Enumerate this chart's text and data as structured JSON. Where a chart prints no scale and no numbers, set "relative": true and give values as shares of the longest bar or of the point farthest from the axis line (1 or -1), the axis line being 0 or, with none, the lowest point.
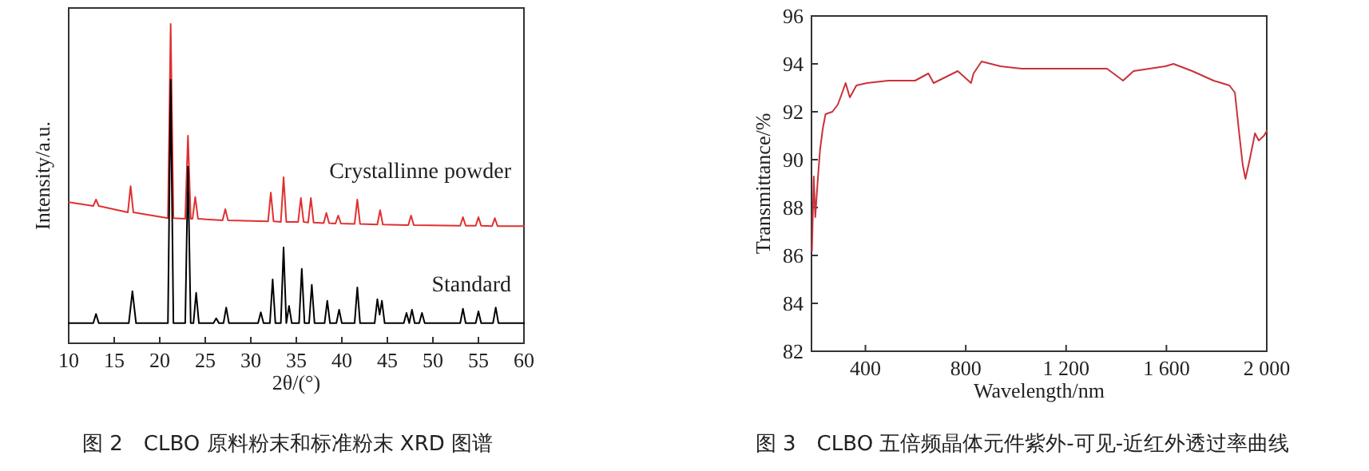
{
  "chart_data": [
    {
      "type": "line",
      "title": "图 2　CLBO 原料粉末和标准粉末 XRD 图谱",
      "xlabel": "2θ/(°)",
      "ylabel": "Intensity/a.u.",
      "relative": true,
      "xlim": [
        10,
        60
      ],
      "xticks": [
        10,
        15,
        20,
        25,
        30,
        35,
        40,
        45,
        50,
        55,
        60
      ],
      "series": [
        {
          "name": "Crystallinne powder",
          "color": "#e03030",
          "x": [
            10,
            12.7,
            13,
            13.3,
            16.5,
            16.8,
            17.1,
            20.9,
            21.2,
            21.5,
            22.8,
            23.1,
            23.4,
            23.6,
            23.9,
            24.2,
            26.9,
            27.2,
            27.5,
            31.9,
            32.2,
            32.5,
            33.3,
            33.6,
            33.9,
            35.2,
            35.5,
            35.8,
            36.3,
            36.6,
            36.9,
            38,
            38.3,
            38.6,
            39.3,
            39.6,
            39.9,
            41.4,
            41.7,
            42,
            43.9,
            44.2,
            44.5,
            47.3,
            47.6,
            47.9,
            53,
            53.3,
            53.6,
            54.7,
            55,
            55.3,
            56.5,
            56.8,
            57.1,
            60
          ],
          "values": [
            0.442,
            0.43,
            0.45,
            0.43,
            0.41,
            0.492,
            0.41,
            0.392,
            1,
            0.392,
            0.39,
            0.65,
            0.39,
            0.39,
            0.458,
            0.39,
            0.385,
            0.42,
            0.385,
            0.382,
            0.472,
            0.382,
            0.38,
            0.52,
            0.38,
            0.38,
            0.455,
            0.38,
            0.378,
            0.455,
            0.378,
            0.376,
            0.408,
            0.376,
            0.375,
            0.4,
            0.375,
            0.374,
            0.45,
            0.374,
            0.372,
            0.417,
            0.372,
            0.37,
            0.4,
            0.37,
            0.368,
            0.395,
            0.368,
            0.368,
            0.395,
            0.368,
            0.367,
            0.392,
            0.367,
            0.367
          ]
        },
        {
          "name": "Standard",
          "color": "#000000",
          "x": [
            10,
            12.7,
            13,
            13.3,
            16.6,
            17,
            17.4,
            20.9,
            21.2,
            21.5,
            22.8,
            23.1,
            23.4,
            23.7,
            24,
            24.3,
            25.9,
            26.2,
            26.5,
            27,
            27.3,
            27.6,
            30.8,
            31.1,
            31.4,
            32.1,
            32.4,
            32.7,
            33.3,
            33.6,
            33.9,
            34.2,
            34.5,
            35.3,
            35.6,
            35.9,
            36.4,
            36.7,
            37,
            38.1,
            38.4,
            38.7,
            39.4,
            39.7,
            40,
            41.4,
            41.7,
            42,
            43.6,
            43.9,
            44.15,
            44.4,
            44.7,
            46.8,
            47.1,
            47.4,
            47.7,
            48,
            48.5,
            48.8,
            49.1,
            53,
            53.3,
            53.6,
            54.7,
            55,
            55.3,
            56.6,
            56.9,
            57.2,
            60
          ],
          "values": [
            0.063,
            0.063,
            0.092,
            0.063,
            0.063,
            0.163,
            0.063,
            0.063,
            0.825,
            0.063,
            0.063,
            0.553,
            0.063,
            0.063,
            0.158,
            0.063,
            0.063,
            0.078,
            0.063,
            0.063,
            0.112,
            0.063,
            0.063,
            0.097,
            0.063,
            0.063,
            0.2,
            0.063,
            0.063,
            0.3,
            0.063,
            0.117,
            0.063,
            0.063,
            0.233,
            0.063,
            0.063,
            0.183,
            0.063,
            0.063,
            0.133,
            0.063,
            0.063,
            0.105,
            0.063,
            0.063,
            0.175,
            0.063,
            0.063,
            0.138,
            0.09,
            0.133,
            0.063,
            0.063,
            0.095,
            0.063,
            0.105,
            0.063,
            0.063,
            0.095,
            0.063,
            0.063,
            0.108,
            0.063,
            0.063,
            0.1,
            0.063,
            0.063,
            0.112,
            0.063,
            0.063
          ]
        }
      ]
    },
    {
      "type": "line",
      "title": "图 3　CLBO 五倍频晶体元件紫外-可见-近红外透过率曲线",
      "xlabel": "Wavelength/nm",
      "ylabel": "Transmittance/%",
      "xlim": [
        185,
        2000
      ],
      "xticks": [
        400,
        800,
        {
          "value": 1200,
          "label": "1 200"
        },
        {
          "value": 1600,
          "label": "1 600"
        },
        {
          "value": 2000,
          "label": "2 000"
        }
      ],
      "ylim": [
        82,
        96
      ],
      "yticks": [
        82,
        84,
        86,
        88,
        90,
        92,
        94,
        96
      ],
      "series": [
        {
          "color": "#c8323a",
          "x": [
            187,
            194,
            200,
            211,
            219,
            230,
            241,
            268,
            290,
            311,
            321,
            338,
            364,
            406,
            491,
            598,
            651,
            672,
            768,
            821,
            831,
            863,
            938,
            1023,
            1193,
            1363,
            1427,
            1469,
            1596,
            1628,
            1703,
            1788,
            1851,
            1873,
            1890,
            1904,
            1915,
            1932,
            1953,
            1968,
            1989,
            2000
          ],
          "values": [
            86.2,
            89.3,
            87.6,
            89.3,
            90.4,
            91.3,
            91.9,
            92.0,
            92.3,
            92.9,
            93.2,
            92.6,
            93.1,
            93.2,
            93.3,
            93.3,
            93.6,
            93.2,
            93.7,
            93.2,
            93.6,
            94.1,
            93.9,
            93.8,
            93.8,
            93.8,
            93.3,
            93.7,
            93.9,
            94.0,
            93.7,
            93.3,
            93.1,
            92.8,
            91.1,
            89.8,
            89.2,
            90.0,
            91.1,
            90.8,
            91.0,
            91.2
          ]
        }
      ]
    }
  ]
}
